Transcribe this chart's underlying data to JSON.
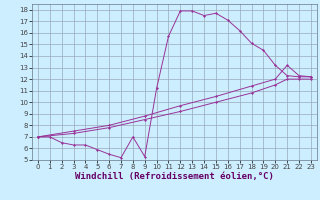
{
  "background_color": "#cceeff",
  "line_color": "#993399",
  "grid_color": "#99aabb",
  "xlabel": "Windchill (Refroidissement éolien,°C)",
  "xlabel_fontsize": 6.5,
  "ylabel_ticks": [
    5,
    6,
    7,
    8,
    9,
    10,
    11,
    12,
    13,
    14,
    15,
    16,
    17,
    18
  ],
  "xlabel_ticks": [
    0,
    1,
    2,
    3,
    4,
    5,
    6,
    7,
    8,
    9,
    10,
    11,
    12,
    13,
    14,
    15,
    16,
    17,
    18,
    19,
    20,
    21,
    22,
    23
  ],
  "xlim": [
    -0.5,
    23.5
  ],
  "ylim": [
    5,
    18.5
  ],
  "series1": [
    [
      0,
      7.0
    ],
    [
      1,
      7.0
    ],
    [
      2,
      6.5
    ],
    [
      3,
      6.3
    ],
    [
      4,
      6.3
    ],
    [
      5,
      5.9
    ],
    [
      6,
      5.5
    ],
    [
      7,
      5.2
    ],
    [
      8,
      7.0
    ],
    [
      9,
      5.3
    ],
    [
      10,
      11.2
    ],
    [
      11,
      15.7
    ],
    [
      12,
      17.9
    ],
    [
      13,
      17.9
    ],
    [
      14,
      17.5
    ],
    [
      15,
      17.7
    ],
    [
      16,
      17.1
    ],
    [
      17,
      16.2
    ],
    [
      18,
      15.1
    ],
    [
      19,
      14.5
    ],
    [
      20,
      13.2
    ],
    [
      21,
      12.3
    ],
    [
      22,
      12.2
    ],
    [
      23,
      12.2
    ]
  ],
  "series2": [
    [
      0,
      7.0
    ],
    [
      3,
      7.5
    ],
    [
      6,
      8.0
    ],
    [
      9,
      8.8
    ],
    [
      12,
      9.7
    ],
    [
      15,
      10.5
    ],
    [
      18,
      11.4
    ],
    [
      20,
      12.0
    ],
    [
      21,
      13.2
    ],
    [
      22,
      12.3
    ],
    [
      23,
      12.2
    ]
  ],
  "series3": [
    [
      0,
      7.0
    ],
    [
      3,
      7.3
    ],
    [
      6,
      7.8
    ],
    [
      9,
      8.5
    ],
    [
      12,
      9.2
    ],
    [
      15,
      10.0
    ],
    [
      18,
      10.8
    ],
    [
      20,
      11.5
    ],
    [
      21,
      12.0
    ],
    [
      22,
      12.0
    ],
    [
      23,
      12.0
    ]
  ]
}
